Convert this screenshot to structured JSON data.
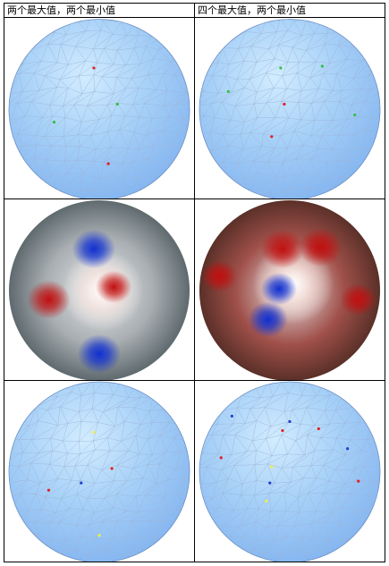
{
  "headers": {
    "left": "两个最大值，两个最小值",
    "right": "四个最大值，两个最小值"
  },
  "colors": {
    "mesh_blue": "#7fb2f0",
    "mesh_light": "#d2ecff",
    "max_marker": "#e02020",
    "min_marker": "#2040d0",
    "green_marker": "#30c040",
    "yellow_marker": "#f0f040",
    "field_red": "#c01010",
    "field_blue": "#1030d0",
    "field_gray": "#7f8c90"
  },
  "panels": [
    {
      "name": "mesh-left-top",
      "kind": "mesh",
      "markers": [
        {
          "u": 0.47,
          "v": 0.27,
          "c": "red"
        },
        {
          "u": 0.55,
          "v": 0.8,
          "c": "red"
        },
        {
          "u": 0.25,
          "v": 0.57,
          "c": "green"
        },
        {
          "u": 0.6,
          "v": 0.47,
          "c": "green"
        }
      ]
    },
    {
      "name": "mesh-right-top",
      "kind": "mesh",
      "markers": [
        {
          "u": 0.47,
          "v": 0.47,
          "c": "red"
        },
        {
          "u": 0.4,
          "v": 0.65,
          "c": "red"
        },
        {
          "u": 0.45,
          "v": 0.27,
          "c": "green"
        },
        {
          "u": 0.68,
          "v": 0.26,
          "c": "green"
        },
        {
          "u": 0.16,
          "v": 0.4,
          "c": "green"
        },
        {
          "u": 0.86,
          "v": 0.53,
          "c": "green"
        }
      ]
    },
    {
      "name": "field-left",
      "kind": "field",
      "spots": [
        {
          "u": 0.47,
          "v": 0.27,
          "c": "blue",
          "r": 0.12
        },
        {
          "u": 0.5,
          "v": 0.85,
          "c": "blue",
          "r": 0.12
        },
        {
          "u": 0.22,
          "v": 0.55,
          "c": "red",
          "r": 0.12
        },
        {
          "u": 0.58,
          "v": 0.48,
          "c": "red",
          "r": 0.1
        }
      ],
      "glow": {
        "u": 0.52,
        "v": 0.5
      }
    },
    {
      "name": "field-right",
      "kind": "field",
      "spots": [
        {
          "u": 0.44,
          "v": 0.49,
          "c": "blue",
          "r": 0.1
        },
        {
          "u": 0.38,
          "v": 0.66,
          "c": "blue",
          "r": 0.11
        },
        {
          "u": 0.46,
          "v": 0.27,
          "c": "red",
          "r": 0.12
        },
        {
          "u": 0.67,
          "v": 0.26,
          "c": "red",
          "r": 0.12
        },
        {
          "u": 0.11,
          "v": 0.42,
          "c": "red",
          "r": 0.1
        },
        {
          "u": 0.88,
          "v": 0.55,
          "c": "red",
          "r": 0.1
        }
      ],
      "glow": {
        "u": 0.52,
        "v": 0.46
      }
    },
    {
      "name": "mesh-left-bottom",
      "kind": "mesh",
      "markers": [
        {
          "u": 0.57,
          "v": 0.48,
          "c": "red"
        },
        {
          "u": 0.22,
          "v": 0.6,
          "c": "red"
        },
        {
          "u": 0.47,
          "v": 0.28,
          "c": "yellow"
        },
        {
          "u": 0.5,
          "v": 0.85,
          "c": "yellow"
        },
        {
          "u": 0.4,
          "v": 0.56,
          "c": "blue"
        }
      ]
    },
    {
      "name": "mesh-right-bottom",
      "kind": "mesh",
      "markers": [
        {
          "u": 0.46,
          "v": 0.27,
          "c": "red"
        },
        {
          "u": 0.66,
          "v": 0.26,
          "c": "red"
        },
        {
          "u": 0.12,
          "v": 0.42,
          "c": "red"
        },
        {
          "u": 0.88,
          "v": 0.55,
          "c": "red"
        },
        {
          "u": 0.4,
          "v": 0.47,
          "c": "yellow"
        },
        {
          "u": 0.37,
          "v": 0.66,
          "c": "yellow"
        },
        {
          "u": 0.18,
          "v": 0.19,
          "c": "blue"
        },
        {
          "u": 0.5,
          "v": 0.22,
          "c": "blue"
        },
        {
          "u": 0.39,
          "v": 0.56,
          "c": "blue"
        },
        {
          "u": 0.82,
          "v": 0.37,
          "c": "blue"
        }
      ]
    }
  ]
}
